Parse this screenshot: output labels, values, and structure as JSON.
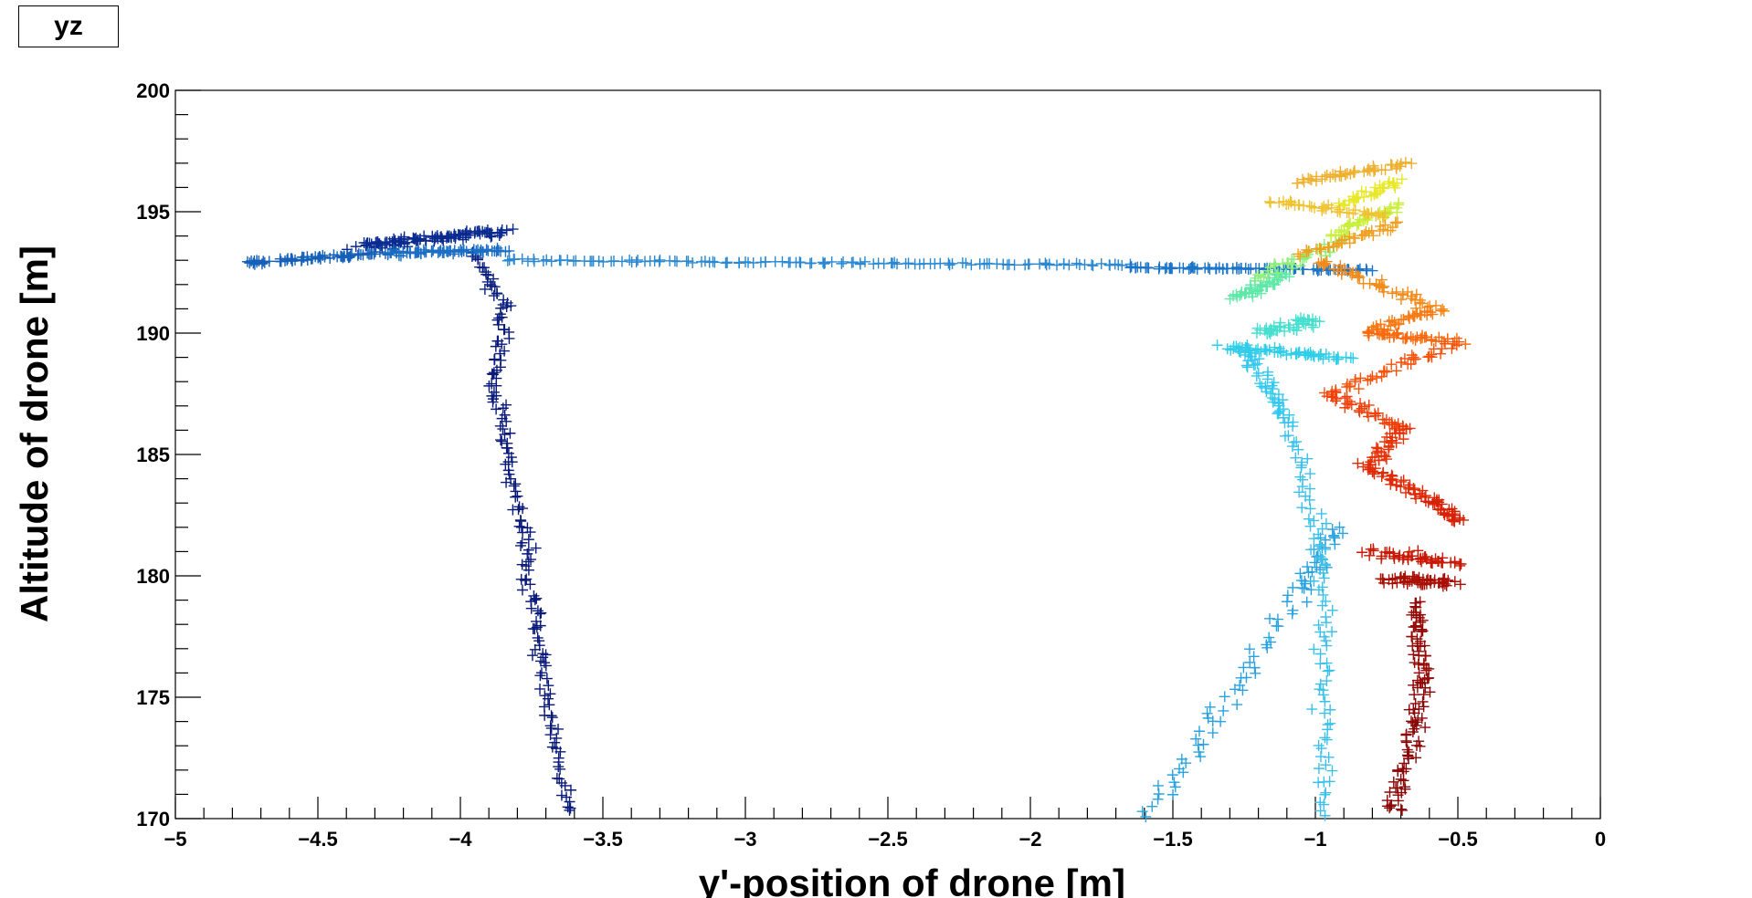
{
  "title_box": "yz",
  "chart_data": {
    "type": "scatter",
    "marker": "+",
    "title": "yz",
    "xlabel": "y'-position of drone [m]",
    "ylabel": "Altitude of drone [m]",
    "xlim": [
      -5,
      0
    ],
    "ylim": [
      170,
      200
    ],
    "x_ticks": [
      -5,
      -4.5,
      -4,
      -3.5,
      -3,
      -2.5,
      -2,
      -1.5,
      -1,
      -0.5,
      0
    ],
    "x_tick_labels": [
      "−5",
      "−4.5",
      "−4",
      "−3.5",
      "−3",
      "−2.5",
      "−2",
      "−1.5",
      "−1",
      "−0.5",
      "0"
    ],
    "y_ticks": [
      170,
      175,
      180,
      185,
      190,
      195,
      200
    ],
    "y_tick_labels": [
      "170",
      "175",
      "180",
      "185",
      "190",
      "195",
      "200"
    ],
    "grid": false,
    "legend": "none",
    "colormap": "jet (point color encodes time along the flight path)",
    "path_segments": [
      {
        "from": [
          -3.62,
          170.2
        ],
        "to": [
          -3.72,
          176.5
        ],
        "color": "#0a1a7a",
        "count": 40,
        "noise": [
          0.05,
          0.25
        ]
      },
      {
        "from": [
          -3.72,
          176.5
        ],
        "to": [
          -3.78,
          182.0
        ],
        "color": "#0a1a7a",
        "count": 40,
        "noise": [
          0.04,
          0.25
        ]
      },
      {
        "from": [
          -3.78,
          182.0
        ],
        "to": [
          -3.88,
          187.5
        ],
        "color": "#0a1a7a",
        "count": 40,
        "noise": [
          0.04,
          0.25
        ]
      },
      {
        "from": [
          -3.88,
          187.5
        ],
        "to": [
          -3.85,
          191.0
        ],
        "color": "#0a1a7a",
        "count": 30,
        "noise": [
          0.04,
          0.25
        ]
      },
      {
        "from": [
          -3.85,
          191.0
        ],
        "to": [
          -3.95,
          193.3
        ],
        "color": "#0a2080",
        "count": 25,
        "noise": [
          0.04,
          0.2
        ]
      },
      {
        "from": [
          -4.35,
          193.6
        ],
        "to": [
          -3.85,
          194.2
        ],
        "color": "#0a2a90",
        "count": 110,
        "noise": [
          0.08,
          0.25
        ]
      },
      {
        "from": [
          -4.75,
          192.9
        ],
        "to": [
          -4.25,
          193.3
        ],
        "color": "#1560b8",
        "count": 70,
        "noise": [
          0.06,
          0.12
        ]
      },
      {
        "from": [
          -4.25,
          193.3
        ],
        "to": [
          -3.85,
          193.4
        ],
        "color": "#1b6ec3",
        "count": 70,
        "noise": [
          0.06,
          0.15
        ]
      },
      {
        "from": [
          -3.85,
          193.0
        ],
        "to": [
          -1.65,
          192.8
        ],
        "color": "#2a88d0",
        "count": 130,
        "noise": [
          0.03,
          0.08
        ]
      },
      {
        "from": [
          -1.65,
          192.7
        ],
        "to": [
          -0.8,
          192.6
        ],
        "color": "#1a74c8",
        "count": 90,
        "noise": [
          0.04,
          0.08
        ]
      },
      {
        "from": [
          -1.58,
          170.2
        ],
        "to": [
          -1.05,
          179.5
        ],
        "color": "#29a3e0",
        "count": 55,
        "noise": [
          0.06,
          0.3
        ]
      },
      {
        "from": [
          -1.05,
          179.5
        ],
        "to": [
          -0.92,
          182.0
        ],
        "color": "#29a3e0",
        "count": 30,
        "noise": [
          0.06,
          0.3
        ]
      },
      {
        "from": [
          -0.97,
          170.2
        ],
        "to": [
          -0.97,
          180.5
        ],
        "color": "#3cc0ea",
        "count": 55,
        "noise": [
          0.05,
          0.3
        ]
      },
      {
        "from": [
          -0.97,
          180.5
        ],
        "to": [
          -1.1,
          186.5
        ],
        "color": "#3cc0ea",
        "count": 40,
        "noise": [
          0.05,
          0.3
        ]
      },
      {
        "from": [
          -1.1,
          186.5
        ],
        "to": [
          -1.25,
          189.5
        ],
        "color": "#32c8f0",
        "count": 45,
        "noise": [
          0.05,
          0.3
        ]
      },
      {
        "from": [
          -1.32,
          189.4
        ],
        "to": [
          -0.88,
          189.0
        ],
        "color": "#30cde8",
        "count": 60,
        "noise": [
          0.06,
          0.2
        ]
      },
      {
        "from": [
          -1.2,
          190.0
        ],
        "to": [
          -1.0,
          190.5
        ],
        "color": "#45dfcf",
        "count": 40,
        "noise": [
          0.06,
          0.3
        ]
      },
      {
        "from": [
          -1.28,
          191.4
        ],
        "to": [
          -1.1,
          192.5
        ],
        "color": "#5fe8a7",
        "count": 45,
        "noise": [
          0.06,
          0.3
        ]
      },
      {
        "from": [
          -1.2,
          192.3
        ],
        "to": [
          -0.9,
          193.8
        ],
        "color": "#8ef07a",
        "count": 40,
        "noise": [
          0.05,
          0.25
        ]
      },
      {
        "from": [
          -0.95,
          194.0
        ],
        "to": [
          -0.7,
          195.3
        ],
        "color": "#c9ef3a",
        "count": 35,
        "noise": [
          0.05,
          0.25
        ]
      },
      {
        "from": [
          -0.9,
          195.3
        ],
        "to": [
          -0.72,
          196.3
        ],
        "color": "#e8e82a",
        "count": 35,
        "noise": [
          0.05,
          0.2
        ]
      },
      {
        "from": [
          -1.15,
          195.5
        ],
        "to": [
          -0.75,
          194.8
        ],
        "color": "#f0c230",
        "count": 40,
        "noise": [
          0.05,
          0.2
        ]
      },
      {
        "from": [
          -1.05,
          196.2
        ],
        "to": [
          -0.68,
          197.0
        ],
        "color": "#eeb02e",
        "count": 45,
        "noise": [
          0.05,
          0.2
        ]
      },
      {
        "from": [
          -0.7,
          194.5
        ],
        "to": [
          -1.05,
          193.2
        ],
        "color": "#f0a020",
        "count": 40,
        "noise": [
          0.05,
          0.2
        ]
      },
      {
        "from": [
          -1.0,
          193.0
        ],
        "to": [
          -0.58,
          191.0
        ],
        "color": "#f48a18",
        "count": 50,
        "noise": [
          0.05,
          0.25
        ]
      },
      {
        "from": [
          -0.58,
          191.0
        ],
        "to": [
          -0.82,
          190.0
        ],
        "color": "#f77a14",
        "count": 35,
        "noise": [
          0.05,
          0.25
        ]
      },
      {
        "from": [
          -0.82,
          190.0
        ],
        "to": [
          -0.5,
          189.6
        ],
        "color": "#f86a10",
        "count": 40,
        "noise": [
          0.05,
          0.25
        ]
      },
      {
        "from": [
          -0.5,
          189.6
        ],
        "to": [
          -0.95,
          187.5
        ],
        "color": "#f5520c",
        "count": 45,
        "noise": [
          0.05,
          0.25
        ]
      },
      {
        "from": [
          -0.95,
          187.5
        ],
        "to": [
          -0.68,
          186.0
        ],
        "color": "#f0400a",
        "count": 40,
        "noise": [
          0.05,
          0.25
        ]
      },
      {
        "from": [
          -0.68,
          186.0
        ],
        "to": [
          -0.82,
          184.5
        ],
        "color": "#e83308",
        "count": 35,
        "noise": [
          0.05,
          0.25
        ]
      },
      {
        "from": [
          -0.82,
          184.5
        ],
        "to": [
          -0.6,
          183.2
        ],
        "color": "#e02a06",
        "count": 40,
        "noise": [
          0.05,
          0.25
        ]
      },
      {
        "from": [
          -0.6,
          183.2
        ],
        "to": [
          -0.5,
          182.2
        ],
        "color": "#d82004",
        "count": 30,
        "noise": [
          0.05,
          0.2
        ]
      },
      {
        "from": [
          -0.8,
          181.0
        ],
        "to": [
          -0.5,
          180.5
        ],
        "color": "#c81804",
        "count": 50,
        "noise": [
          0.06,
          0.3
        ]
      },
      {
        "from": [
          -0.75,
          179.8
        ],
        "to": [
          -0.52,
          179.8
        ],
        "color": "#a81006",
        "count": 60,
        "noise": [
          0.06,
          0.35
        ]
      },
      {
        "from": [
          -0.65,
          179.0
        ],
        "to": [
          -0.62,
          175.5
        ],
        "color": "#950a06",
        "count": 50,
        "noise": [
          0.04,
          0.3
        ]
      },
      {
        "from": [
          -0.62,
          175.5
        ],
        "to": [
          -0.72,
          170.2
        ],
        "color": "#8a0606",
        "count": 60,
        "noise": [
          0.06,
          0.3
        ]
      }
    ]
  }
}
